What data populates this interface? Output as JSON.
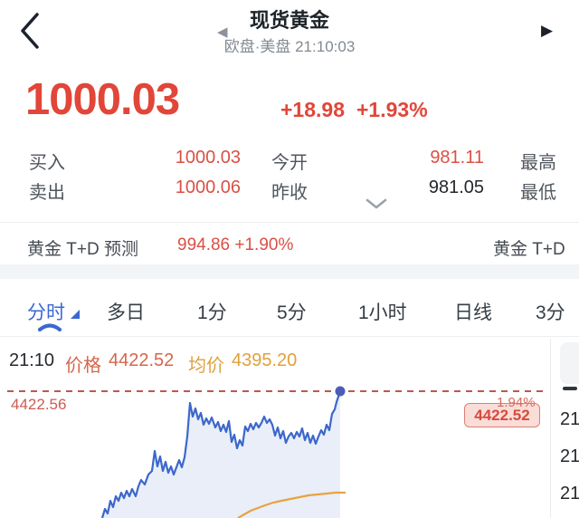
{
  "header": {
    "title": "现货黄金",
    "subtitle": "欧盘·美盘 21:10:03"
  },
  "quote": {
    "price": "1000.03",
    "change_abs": "+18.98",
    "change_pct": "+1.93%"
  },
  "stats": {
    "rows": [
      {
        "l1": "买入",
        "v1": "1000.03",
        "l2": "今开",
        "v2": "981.11",
        "l3": "最高"
      },
      {
        "l1": "卖出",
        "v1": "1000.06",
        "l2": "昨收",
        "v2": "981.05",
        "l3": "最低"
      }
    ]
  },
  "td": {
    "label": "黄金 T+D 预测",
    "value": "994.86 +1.90%",
    "right_label": "黄金 T+D"
  },
  "tabs": {
    "active": "分时",
    "items": [
      {
        "label": "分时"
      },
      {
        "label": "多日"
      },
      {
        "label": "1分"
      },
      {
        "label": "5分"
      },
      {
        "label": "1小时"
      },
      {
        "label": "日线"
      },
      {
        "label": "3分"
      }
    ]
  },
  "chart_header": {
    "time": "21:10",
    "price_label": "价格",
    "price": "4422.52",
    "avg_label": "均价",
    "avg": "4395.20"
  },
  "chart": {
    "high_label": "4422.56",
    "pct_label": "1.94%",
    "badge": "4422.52",
    "dash_y": 60,
    "dot": [
      376,
      60
    ],
    "colors": {
      "line": "#3c67cb",
      "fill": "#e9eef8",
      "avg": "#e8a33f",
      "dash": "#bb5a4e",
      "dot": "#4c5cb8"
    },
    "line_points": [
      [
        113,
        200
      ],
      [
        116,
        190
      ],
      [
        119,
        195
      ],
      [
        122,
        181
      ],
      [
        125,
        188
      ],
      [
        128,
        176
      ],
      [
        131,
        181
      ],
      [
        134,
        172
      ],
      [
        137,
        178
      ],
      [
        140,
        170
      ],
      [
        143,
        176
      ],
      [
        146,
        168
      ],
      [
        150,
        176
      ],
      [
        153,
        165
      ],
      [
        156,
        158
      ],
      [
        160,
        163
      ],
      [
        164,
        152
      ],
      [
        168,
        148
      ],
      [
        171,
        126
      ],
      [
        174,
        143
      ],
      [
        177,
        132
      ],
      [
        180,
        148
      ],
      [
        183,
        138
      ],
      [
        186,
        150
      ],
      [
        189,
        143
      ],
      [
        192,
        152
      ],
      [
        195,
        144
      ],
      [
        198,
        136
      ],
      [
        201,
        144
      ],
      [
        204,
        133
      ],
      [
        207,
        110
      ],
      [
        210,
        73
      ],
      [
        213,
        88
      ],
      [
        216,
        79
      ],
      [
        219,
        91
      ],
      [
        222,
        84
      ],
      [
        225,
        97
      ],
      [
        228,
        90
      ],
      [
        231,
        96
      ],
      [
        234,
        89
      ],
      [
        238,
        100
      ],
      [
        241,
        94
      ],
      [
        244,
        104
      ],
      [
        247,
        97
      ],
      [
        250,
        105
      ],
      [
        253,
        93
      ],
      [
        256,
        116
      ],
      [
        259,
        108
      ],
      [
        262,
        123
      ],
      [
        265,
        114
      ],
      [
        268,
        120
      ],
      [
        271,
        99
      ],
      [
        274,
        104
      ],
      [
        277,
        96
      ],
      [
        280,
        102
      ],
      [
        283,
        95
      ],
      [
        286,
        100
      ],
      [
        289,
        95
      ],
      [
        292,
        88
      ],
      [
        295,
        95
      ],
      [
        298,
        91
      ],
      [
        301,
        97
      ],
      [
        304,
        109
      ],
      [
        307,
        100
      ],
      [
        310,
        112
      ],
      [
        313,
        104
      ],
      [
        316,
        117
      ],
      [
        319,
        110
      ],
      [
        322,
        106
      ],
      [
        325,
        112
      ],
      [
        328,
        105
      ],
      [
        331,
        110
      ],
      [
        334,
        101
      ],
      [
        337,
        114
      ],
      [
        340,
        106
      ],
      [
        343,
        117
      ],
      [
        346,
        109
      ],
      [
        349,
        118
      ],
      [
        352,
        110
      ],
      [
        355,
        103
      ],
      [
        358,
        108
      ],
      [
        361,
        97
      ],
      [
        364,
        103
      ],
      [
        367,
        85
      ],
      [
        370,
        80
      ],
      [
        372,
        72
      ],
      [
        374,
        66
      ],
      [
        376,
        60
      ]
    ],
    "avg_points": [
      [
        263,
        200
      ],
      [
        270,
        196
      ],
      [
        277,
        192
      ],
      [
        285,
        189
      ],
      [
        293,
        186
      ],
      [
        302,
        183
      ],
      [
        311,
        181
      ],
      [
        321,
        179
      ],
      [
        331,
        177
      ],
      [
        341,
        175
      ],
      [
        351,
        174
      ],
      [
        361,
        173
      ],
      [
        371,
        172
      ],
      [
        382,
        172
      ]
    ]
  },
  "side_panel": {
    "rows": [
      {
        "t": "21"
      },
      {
        "t": "21"
      },
      {
        "t": "21"
      }
    ]
  },
  "chart_data": {
    "type": "line",
    "title": "现货黄金 分时",
    "x_current": "21:10",
    "series": [
      {
        "name": "价格",
        "current": 4422.52
      },
      {
        "name": "均价",
        "current": 4395.2
      }
    ],
    "session_high_line": 4422.56,
    "change_pct_at_high": "1.94%",
    "badge_value": 4422.52,
    "legend_position": "top-left",
    "grid": false
  }
}
